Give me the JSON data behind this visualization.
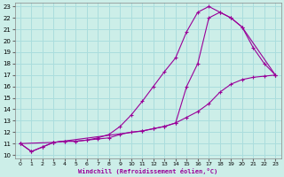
{
  "xlabel": "Windchill (Refroidissement éolien,°C)",
  "bg_color": "#cceee8",
  "grid_color": "#aadddd",
  "line_color": "#990099",
  "xlim": [
    -0.5,
    23.5
  ],
  "ylim": [
    9.7,
    23.3
  ],
  "xticks": [
    0,
    1,
    2,
    3,
    4,
    5,
    6,
    7,
    8,
    9,
    10,
    11,
    12,
    13,
    14,
    15,
    16,
    17,
    18,
    19,
    20,
    21,
    22,
    23
  ],
  "yticks": [
    10,
    11,
    12,
    13,
    14,
    15,
    16,
    17,
    18,
    19,
    20,
    21,
    22,
    23
  ],
  "line1_x": [
    0,
    1,
    2,
    3,
    4,
    5,
    6,
    7,
    8,
    9,
    10,
    11,
    12,
    13,
    14,
    15,
    16,
    17,
    18,
    19,
    20,
    21,
    22,
    23
  ],
  "line1_y": [
    11.0,
    10.3,
    10.7,
    11.1,
    11.2,
    11.2,
    11.3,
    11.4,
    11.5,
    11.8,
    12.0,
    12.1,
    12.3,
    12.5,
    12.8,
    13.3,
    13.8,
    14.5,
    15.5,
    16.2,
    16.6,
    16.8,
    16.9,
    17.0
  ],
  "line2_x": [
    0,
    1,
    2,
    3,
    4,
    5,
    6,
    7,
    8,
    9,
    10,
    11,
    12,
    13,
    14,
    15,
    16,
    17,
    18,
    19,
    20,
    21,
    22,
    23
  ],
  "line2_y": [
    11.0,
    10.3,
    10.7,
    11.1,
    11.2,
    11.2,
    11.3,
    11.5,
    11.8,
    12.5,
    13.5,
    14.7,
    16.0,
    17.3,
    18.5,
    20.8,
    22.5,
    23.0,
    22.5,
    22.0,
    21.2,
    19.4,
    18.0,
    17.0
  ],
  "line3_x": [
    0,
    3,
    11,
    12,
    13,
    14,
    15,
    16,
    17,
    18,
    19,
    20,
    23
  ],
  "line3_y": [
    11.0,
    11.1,
    12.1,
    12.3,
    12.5,
    12.8,
    16.0,
    18.0,
    22.0,
    22.5,
    22.0,
    21.2,
    17.0
  ]
}
